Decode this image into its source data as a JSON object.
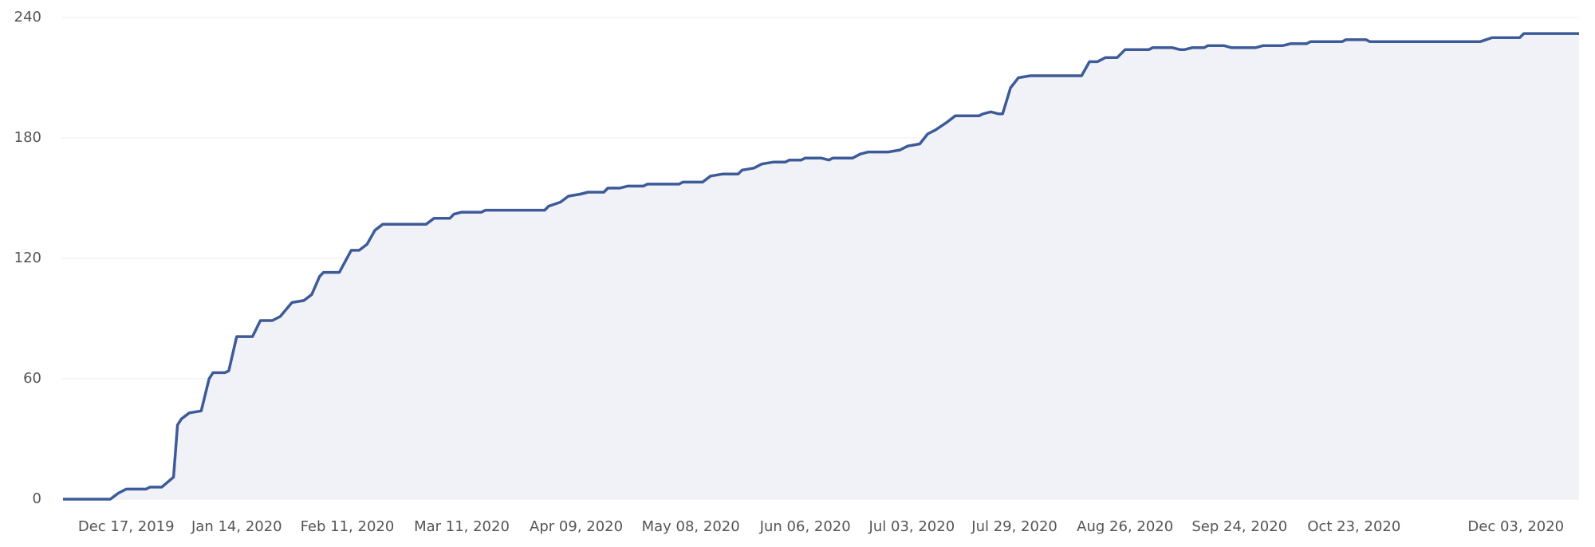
{
  "chart_data": {
    "type": "area",
    "x": [
      "2019-12-01",
      "2019-12-13",
      "2019-12-15",
      "2019-12-17",
      "2019-12-22",
      "2019-12-23",
      "2019-12-26",
      "2019-12-29",
      "2019-12-30",
      "2019-12-31",
      "2020-01-02",
      "2020-01-05",
      "2020-01-07",
      "2020-01-08",
      "2020-01-11",
      "2020-01-12",
      "2020-01-14",
      "2020-01-18",
      "2020-01-20",
      "2020-01-23",
      "2020-01-25",
      "2020-01-28",
      "2020-01-31",
      "2020-02-02",
      "2020-02-04",
      "2020-02-05",
      "2020-02-09",
      "2020-02-12",
      "2020-02-14",
      "2020-02-16",
      "2020-02-18",
      "2020-02-20",
      "2020-03-02",
      "2020-03-04",
      "2020-03-08",
      "2020-03-09",
      "2020-03-11",
      "2020-03-16",
      "2020-03-17",
      "2020-04-01",
      "2020-04-02",
      "2020-04-05",
      "2020-04-07",
      "2020-04-10",
      "2020-04-12",
      "2020-04-16",
      "2020-04-17",
      "2020-04-20",
      "2020-04-22",
      "2020-04-26",
      "2020-04-27",
      "2020-05-05",
      "2020-05-06",
      "2020-05-11",
      "2020-05-13",
      "2020-05-16",
      "2020-05-20",
      "2020-05-21",
      "2020-05-24",
      "2020-05-26",
      "2020-05-29",
      "2020-06-01",
      "2020-06-02",
      "2020-06-05",
      "2020-06-06",
      "2020-06-10",
      "2020-06-12",
      "2020-06-13",
      "2020-06-18",
      "2020-06-20",
      "2020-06-22",
      "2020-06-27",
      "2020-06-30",
      "2020-07-02",
      "2020-07-05",
      "2020-07-07",
      "2020-07-09",
      "2020-07-12",
      "2020-07-14",
      "2020-07-20",
      "2020-07-21",
      "2020-07-23",
      "2020-07-25",
      "2020-07-26",
      "2020-07-28",
      "2020-07-30",
      "2020-08-02",
      "2020-08-15",
      "2020-08-17",
      "2020-08-19",
      "2020-08-21",
      "2020-08-24",
      "2020-08-26",
      "2020-09-01",
      "2020-09-02",
      "2020-09-07",
      "2020-09-09",
      "2020-09-10",
      "2020-09-12",
      "2020-09-15",
      "2020-09-16",
      "2020-09-20",
      "2020-09-22",
      "2020-09-28",
      "2020-09-30",
      "2020-10-05",
      "2020-10-07",
      "2020-10-11",
      "2020-10-12",
      "2020-10-20",
      "2020-10-21",
      "2020-10-26",
      "2020-10-27",
      "2020-11-24",
      "2020-11-27",
      "2020-12-04",
      "2020-12-05",
      "2020-12-19"
    ],
    "values": [
      0,
      0,
      3,
      5,
      5,
      6,
      6,
      11,
      37,
      40,
      43,
      44,
      60,
      63,
      63,
      64,
      81,
      81,
      89,
      89,
      91,
      98,
      99,
      102,
      111,
      113,
      113,
      124,
      124,
      127,
      134,
      137,
      137,
      140,
      140,
      142,
      143,
      143,
      144,
      144,
      146,
      148,
      151,
      152,
      153,
      153,
      155,
      155,
      156,
      156,
      157,
      157,
      158,
      158,
      161,
      162,
      162,
      164,
      165,
      167,
      168,
      168,
      169,
      169,
      170,
      170,
      169,
      170,
      170,
      172,
      173,
      173,
      174,
      176,
      177,
      182,
      184,
      188,
      191,
      191,
      192,
      193,
      192,
      192,
      205,
      210,
      211,
      211,
      218,
      218,
      220,
      220,
      224,
      224,
      225,
      225,
      224,
      224,
      225,
      225,
      226,
      226,
      225,
      225,
      226,
      226,
      227,
      227,
      228,
      228,
      229,
      229,
      228,
      228,
      230,
      230,
      232,
      232
    ],
    "color": "#3d5a99",
    "fill": "#f1f2f7",
    "xlim": [
      "2019-12-01",
      "2020-12-19"
    ],
    "xticks": [
      {
        "value": "2019-12-17",
        "label": "Dec 17, 2019"
      },
      {
        "value": "2020-01-14",
        "label": "Jan 14, 2020"
      },
      {
        "value": "2020-02-11",
        "label": "Feb 11, 2020"
      },
      {
        "value": "2020-03-11",
        "label": "Mar 11, 2020"
      },
      {
        "value": "2020-04-09",
        "label": "Apr 09, 2020"
      },
      {
        "value": "2020-05-08",
        "label": "May 08, 2020"
      },
      {
        "value": "2020-06-06",
        "label": "Jun 06, 2020"
      },
      {
        "value": "2020-07-03",
        "label": "Jul 03, 2020"
      },
      {
        "value": "2020-07-29",
        "label": "Jul 29, 2020"
      },
      {
        "value": "2020-08-26",
        "label": "Aug 26, 2020"
      },
      {
        "value": "2020-09-24",
        "label": "Sep 24, 2020"
      },
      {
        "value": "2020-10-23",
        "label": "Oct 23, 2020"
      },
      {
        "value": "2020-12-03",
        "label": "Dec 03, 2020"
      }
    ],
    "ylim": [
      0,
      240
    ],
    "yticks": [
      0,
      60,
      120,
      180,
      240
    ],
    "grid": true
  }
}
